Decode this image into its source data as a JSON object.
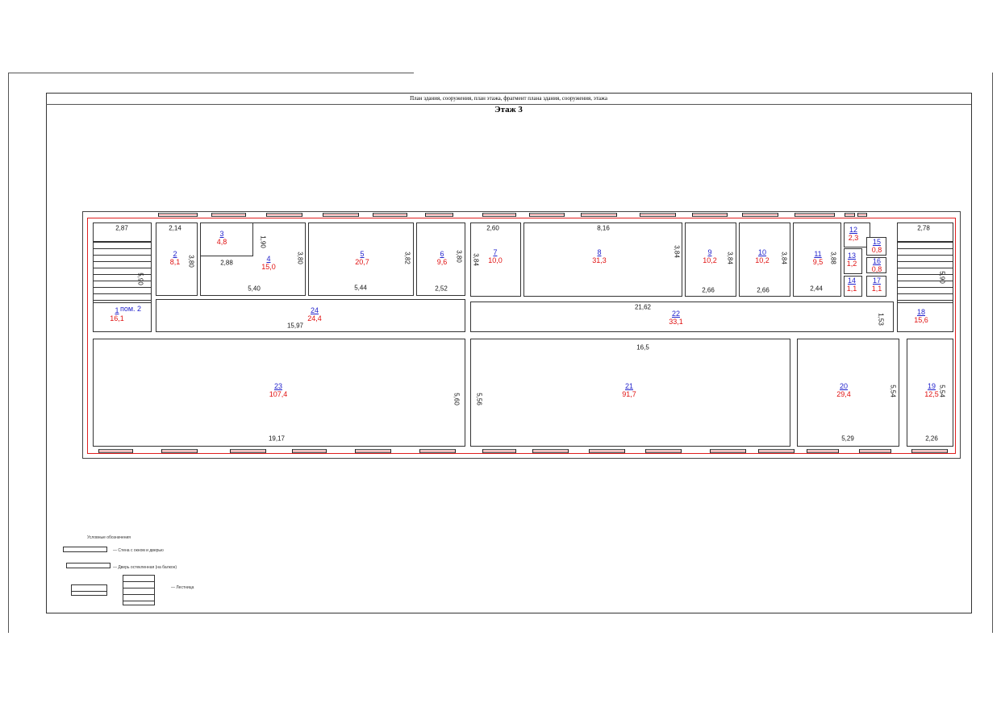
{
  "header": {
    "title": "План здания, сооружения, план этажа, фрагмент плана здания, сооружения, этажа",
    "floor": "Этаж 3"
  },
  "rooms": [
    {
      "id": "1",
      "area": "16,1"
    },
    {
      "id": "2",
      "area": "8,1"
    },
    {
      "id": "3",
      "area": "4,8"
    },
    {
      "id": "4",
      "area": "15,0"
    },
    {
      "id": "5",
      "area": "20,7"
    },
    {
      "id": "6",
      "area": "9,6"
    },
    {
      "id": "7",
      "area": "10,0"
    },
    {
      "id": "8",
      "area": "31,3"
    },
    {
      "id": "9",
      "area": "10,2"
    },
    {
      "id": "10",
      "area": "10,2"
    },
    {
      "id": "11",
      "area": "9,5"
    },
    {
      "id": "12",
      "area": "2,3"
    },
    {
      "id": "13",
      "area": "1,2"
    },
    {
      "id": "14",
      "area": "1,1"
    },
    {
      "id": "15",
      "area": "0,8"
    },
    {
      "id": "16",
      "area": "0,8"
    },
    {
      "id": "17",
      "area": "1,1"
    },
    {
      "id": "18",
      "area": "15,6"
    },
    {
      "id": "19",
      "area": "12,5"
    },
    {
      "id": "20",
      "area": "29,4"
    },
    {
      "id": "21",
      "area": "91,7"
    },
    {
      "id": "22",
      "area": "33,1"
    },
    {
      "id": "23",
      "area": "107,4"
    },
    {
      "id": "24",
      "area": "24,4"
    }
  ],
  "room_note": "пом. 2",
  "dimensions": [
    "2,87",
    "2,14",
    "1,90",
    "3,80",
    "2,88",
    "3,80",
    "5,40",
    "3,82",
    "5,44",
    "3,80",
    "2,52",
    "5,90",
    "15,97",
    "2,60",
    "3,84",
    "8,16",
    "3,84",
    "3,84",
    "2,66",
    "3,84",
    "2,66",
    "3,88",
    "2,44",
    "2,78",
    "5,90",
    "21,62",
    "1,53",
    "16,5",
    "5,60",
    "19,17",
    "5,56",
    "5,54",
    "5,29",
    "5,54",
    "2,26"
  ],
  "legend": {
    "title": "Условные обозначения",
    "items": [
      "— Стена с окном и дверью",
      "— Дверь остекленная (на балкон)",
      "— Лестница"
    ]
  },
  "colors": {
    "room_number": "#2222cc",
    "room_area": "#e01010",
    "outline": "#e02020"
  }
}
